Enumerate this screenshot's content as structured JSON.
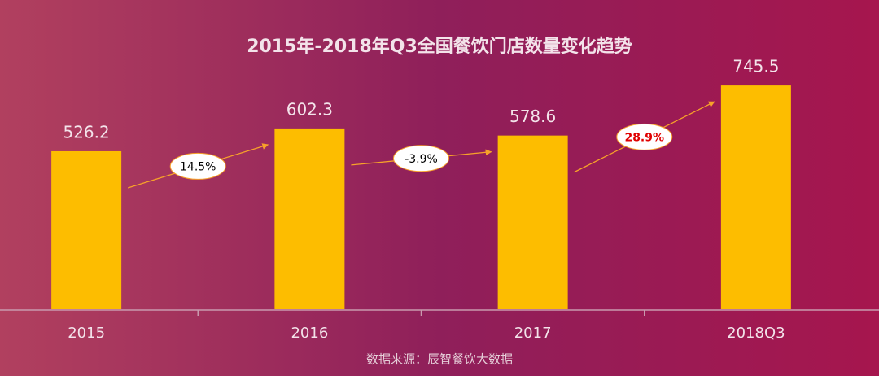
{
  "chart_data": {
    "type": "bar",
    "title": "2015年-2018年Q3全国餐饮门店数量变化趋势",
    "categories": [
      "2015",
      "2016",
      "2017",
      "2018Q3"
    ],
    "values": [
      526.2,
      602.3,
      578.6,
      745.5
    ],
    "color": "#fdbd00",
    "ylim": [
      0,
      800
    ],
    "annotations": [
      {
        "text": "14.5%",
        "color": "#000000"
      },
      {
        "text": "-3.9%",
        "color": "#000000"
      },
      {
        "text": "28.9%",
        "color": "#e00000"
      }
    ],
    "source": "数据来源：辰智餐饮大数据"
  }
}
